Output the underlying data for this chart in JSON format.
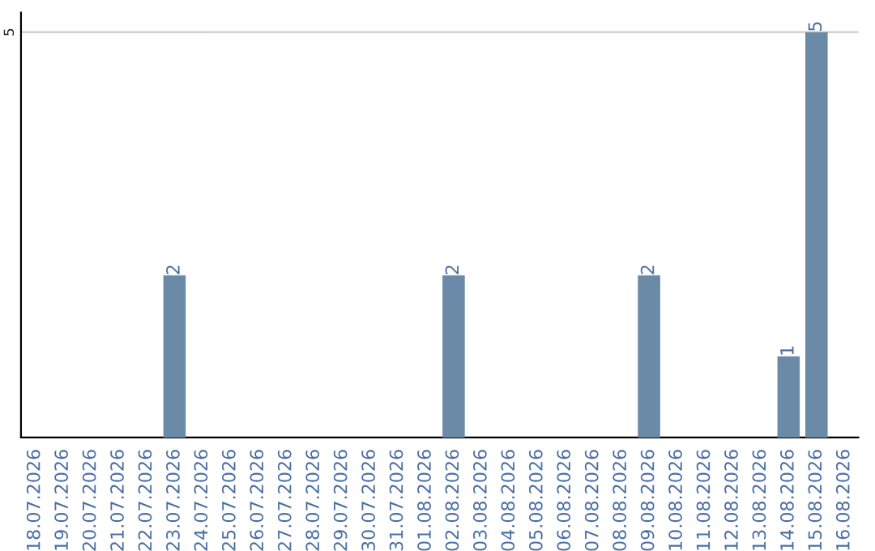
{
  "chart_data": {
    "type": "bar",
    "categories": [
      "18.07.2026",
      "19.07.2026",
      "20.07.2026",
      "21.07.2026",
      "22.07.2026",
      "23.07.2026",
      "24.07.2026",
      "25.07.2026",
      "26.07.2026",
      "27.07.2026",
      "28.07.2026",
      "29.07.2026",
      "30.07.2026",
      "31.07.2026",
      "01.08.2026",
      "02.08.2026",
      "03.08.2026",
      "04.08.2026",
      "05.08.2026",
      "06.08.2026",
      "07.08.2026",
      "08.08.2026",
      "09.08.2026",
      "10.08.2026",
      "11.08.2026",
      "12.08.2026",
      "13.08.2026",
      "14.08.2026",
      "15.08.2026",
      "16.08.2026"
    ],
    "values": [
      0,
      0,
      0,
      0,
      0,
      2,
      0,
      0,
      0,
      0,
      0,
      0,
      0,
      0,
      0,
      2,
      0,
      0,
      0,
      0,
      0,
      0,
      2,
      0,
      0,
      0,
      0,
      1,
      5,
      0
    ],
    "value_labels": [
      null,
      null,
      null,
      null,
      null,
      "2",
      null,
      null,
      null,
      null,
      null,
      null,
      null,
      null,
      null,
      "2",
      null,
      null,
      null,
      null,
      null,
      null,
      "2",
      null,
      null,
      null,
      null,
      "1",
      "5",
      null
    ],
    "color": "#6b8aa8",
    "ylim": [
      0,
      5.24
    ],
    "yticks": [
      5
    ],
    "grid": "y",
    "legend": false
  }
}
